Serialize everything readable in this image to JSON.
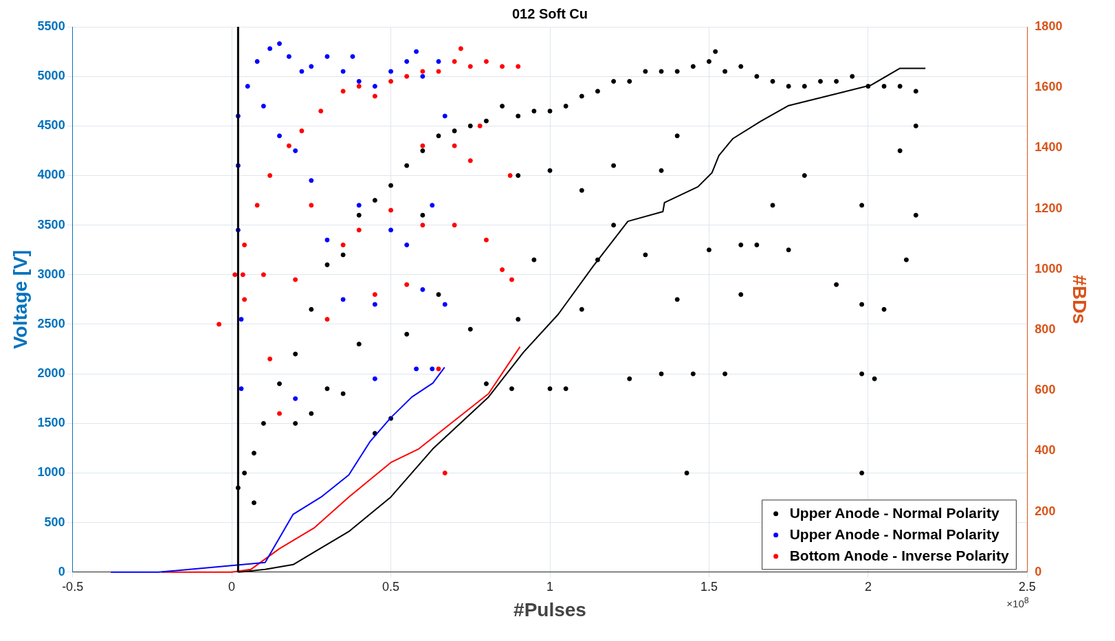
{
  "chart_data": {
    "type": "scatter",
    "title": "012 Soft Cu",
    "xlabel": "#Pulses",
    "ylabel": "Voltage [V]",
    "y2label": "#BDs",
    "annotations": [
      "×10$^{8}$"
    ],
    "xlim": [
      -0.5,
      2.5
    ],
    "xticks": [
      -0.5,
      0,
      0.5,
      1,
      1.5,
      2,
      2.5
    ],
    "ylim": [
      0,
      5500
    ],
    "yticks": [
      0,
      500,
      1000,
      1500,
      2000,
      2500,
      3000,
      3500,
      4000,
      4500,
      5000,
      5500
    ],
    "y2lim": [
      0,
      1800
    ],
    "y2ticks": [
      0,
      200,
      400,
      600,
      800,
      1000,
      1200,
      1400,
      1600,
      1800
    ],
    "grid": true,
    "legend": "bottom right",
    "marker": "circle",
    "ref_lines": [
      {
        "axis": "x",
        "value": 0.02,
        "color": "#000000"
      }
    ],
    "series": [
      {
        "name": "Upper Anode - Normal Polarity",
        "color": "#000000",
        "x": [
          0.02,
          0.04,
          0.07,
          0.07,
          0.1,
          0.15,
          0.2,
          0.25,
          0.3,
          0.35,
          0.4,
          0.45,
          0.5,
          0.55,
          0.6,
          0.65,
          0.7,
          0.75,
          0.8,
          0.85,
          0.9,
          0.95,
          1.0,
          1.05,
          1.1,
          1.15,
          1.2,
          1.25,
          1.3,
          1.35,
          1.4,
          1.45,
          1.5,
          1.52,
          1.55,
          1.6,
          1.65,
          1.7,
          1.75,
          1.8,
          1.85,
          1.9,
          1.95,
          2.0,
          2.05,
          2.1,
          2.15,
          0.2,
          0.25,
          0.3,
          0.35,
          0.4,
          0.45,
          0.5,
          0.55,
          0.6,
          0.65,
          0.75,
          0.8,
          0.88,
          0.9,
          0.95,
          1.0,
          1.05,
          1.1,
          1.15,
          1.2,
          1.25,
          1.3,
          1.35,
          1.4,
          1.43,
          1.45,
          1.5,
          1.55,
          1.6,
          1.65,
          1.7,
          1.75,
          1.8,
          1.9,
          1.98,
          1.98,
          1.98,
          2.02,
          2.05,
          2.12,
          2.15,
          2.15,
          1.35,
          1.2,
          1.0,
          1.1,
          0.9,
          1.4,
          1.6,
          1.98,
          2.1
        ],
        "values": [
          850,
          1000,
          700,
          1200,
          1500,
          1900,
          2200,
          2650,
          3100,
          3200,
          3600,
          3750,
          3900,
          4100,
          4250,
          4400,
          4450,
          4500,
          4550,
          4700,
          4600,
          4650,
          4650,
          4700,
          4800,
          4850,
          4950,
          4950,
          5050,
          5050,
          5050,
          5100,
          5150,
          5250,
          5050,
          5100,
          5000,
          4950,
          4900,
          4900,
          4950,
          4950,
          5000,
          4900,
          4900,
          4900,
          4850,
          1500,
          1600,
          1850,
          1800,
          2300,
          1400,
          1550,
          2400,
          3600,
          2800,
          2450,
          1900,
          1850,
          2550,
          3150,
          1850,
          1850,
          2650,
          3150,
          3500,
          1950,
          3200,
          2000,
          2750,
          1000,
          2000,
          3250,
          2000,
          2800,
          3300,
          3700,
          3250,
          4000,
          2900,
          1000,
          2000,
          2700,
          1950,
          2650,
          3150,
          3600,
          4500,
          4050,
          4100,
          4050,
          3850,
          4000,
          4400,
          3300,
          3700,
          4250
        ]
      },
      {
        "name": "Upper Anode - Normal Polarity",
        "color": "#0000ff",
        "x": [
          0.02,
          0.05,
          0.08,
          0.12,
          0.15,
          0.18,
          0.22,
          0.25,
          0.3,
          0.35,
          0.38,
          0.4,
          0.45,
          0.5,
          0.55,
          0.58,
          0.6,
          0.65,
          0.67,
          0.1,
          0.15,
          0.2,
          0.25,
          0.3,
          0.35,
          0.4,
          0.45,
          0.5,
          0.55,
          0.6,
          0.63,
          0.67,
          0.45,
          0.58,
          0.63,
          0.02,
          0.02,
          0.03,
          0.03,
          0.2
        ],
        "values": [
          4600,
          4900,
          5150,
          5280,
          5330,
          5200,
          5050,
          5100,
          5200,
          5050,
          5200,
          4950,
          4900,
          5050,
          5150,
          5250,
          5000,
          5150,
          4600,
          4700,
          4400,
          4250,
          3950,
          3350,
          2750,
          3700,
          2700,
          3450,
          3300,
          2850,
          3700,
          2700,
          1950,
          2050,
          2050,
          3450,
          4100,
          2550,
          1850,
          1750
        ]
      },
      {
        "name": "Bottom Anode - Inverse Polarity",
        "color": "#ff0000",
        "x": [
          0.035,
          0.04,
          0.08,
          0.12,
          0.18,
          0.22,
          0.28,
          0.35,
          0.4,
          0.45,
          0.5,
          0.55,
          0.6,
          0.65,
          0.7,
          0.72,
          0.75,
          0.8,
          0.85,
          0.9,
          -0.04,
          0.01,
          0.04,
          0.12,
          0.15,
          0.1,
          0.2,
          0.25,
          0.3,
          0.35,
          0.4,
          0.45,
          0.5,
          0.55,
          0.6,
          0.65,
          0.67,
          0.7,
          0.75,
          0.8,
          0.85,
          0.88,
          0.875,
          0.6,
          0.78,
          0.7
        ],
        "values": [
          3000,
          3300,
          3700,
          4000,
          4300,
          4450,
          4650,
          4850,
          4900,
          4800,
          4950,
          5000,
          5050,
          5050,
          5150,
          5280,
          5100,
          5150,
          5100,
          5100,
          2500,
          3000,
          2750,
          2150,
          1600,
          3000,
          2950,
          3700,
          2550,
          3300,
          3450,
          2800,
          3650,
          2900,
          3500,
          2050,
          1000,
          3500,
          4150,
          3350,
          3050,
          2950,
          4000,
          4300,
          4500,
          4300
        ]
      },
      {
        "type": "line",
        "axis": "y2",
        "marker": "none",
        "color": "#000000",
        "x": [
          0.02,
          0.04,
          0.105,
          0.193,
          0.259,
          0.368,
          0.5,
          0.632,
          0.807,
          0.917,
          1.026,
          1.136,
          1.245,
          1.355,
          1.36,
          1.465,
          1.509,
          1.531,
          1.575,
          1.662,
          1.75,
          1.9,
          2.01,
          2.1,
          2.18
        ],
        "values": [
          0,
          2,
          9,
          25,
          66,
          134,
          248,
          407,
          578,
          726,
          851,
          1010,
          1158,
          1190,
          1220,
          1272,
          1318,
          1375,
          1431,
          1488,
          1540,
          1579,
          1608,
          1663,
          1663
        ]
      },
      {
        "type": "line",
        "axis": "y2",
        "marker": "none",
        "color": "#0000ff",
        "x": [
          -0.38,
          -0.23,
          0.105,
          0.193,
          0.281,
          0.368,
          0.434,
          0.5,
          0.566,
          0.632,
          0.669
        ],
        "values": [
          0,
          0,
          32,
          191,
          248,
          321,
          430,
          510,
          578,
          624,
          676
        ]
      },
      {
        "type": "line",
        "axis": "y2",
        "marker": "none",
        "color": "#ff0000",
        "x": [
          -0.22,
          0,
          0.06,
          0.149,
          0.259,
          0.368,
          0.5,
          0.588,
          0.697,
          0.807,
          0.851,
          0.906
        ],
        "values": [
          0,
          0,
          9,
          77,
          146,
          248,
          362,
          407,
          498,
          589,
          658,
          744
        ]
      }
    ]
  }
}
